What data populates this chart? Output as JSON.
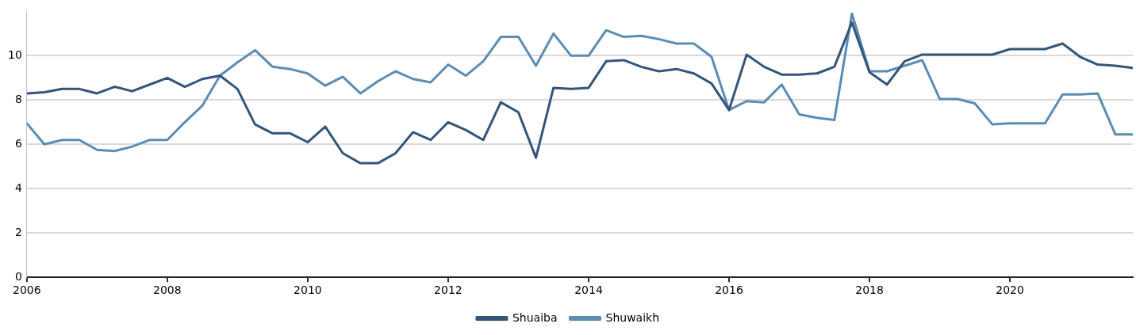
{
  "chart_data": {
    "type": "line",
    "x": [
      2006,
      2006.25,
      2006.5,
      2006.75,
      2007,
      2007.25,
      2007.5,
      2007.75,
      2008,
      2008.25,
      2008.5,
      2008.75,
      2009,
      2009.25,
      2009.5,
      2009.75,
      2010,
      2010.25,
      2010.5,
      2010.75,
      2011,
      2011.25,
      2011.5,
      2011.75,
      2012,
      2012.25,
      2012.5,
      2012.75,
      2013,
      2013.25,
      2013.5,
      2013.75,
      2014,
      2014.25,
      2014.5,
      2014.75,
      2015,
      2015.25,
      2015.5,
      2015.75,
      2016,
      2016.25,
      2016.5,
      2016.75,
      2017,
      2017.25,
      2017.5,
      2017.75,
      2018,
      2018.25,
      2018.5,
      2018.75,
      2019,
      2019.25,
      2019.5,
      2019.75,
      2020,
      2020.25,
      2020.5,
      2020.75,
      2021,
      2021.25,
      2021.5,
      2021.75
    ],
    "series": [
      {
        "name": "Shuaiba",
        "color": "#34557a",
        "values": [
          8.3,
          8.35,
          8.5,
          8.5,
          8.3,
          8.6,
          8.4,
          8.7,
          9.0,
          8.6,
          8.95,
          9.1,
          8.5,
          6.9,
          6.5,
          6.5,
          6.1,
          6.8,
          5.6,
          5.15,
          5.15,
          5.6,
          6.55,
          6.2,
          7.0,
          6.65,
          6.2,
          7.9,
          7.45,
          5.4,
          8.55,
          8.5,
          8.55,
          9.75,
          9.8,
          9.5,
          9.3,
          9.4,
          9.2,
          8.75,
          7.55,
          10.05,
          9.5,
          9.15,
          9.15,
          9.2,
          9.5,
          11.5,
          9.25,
          8.7,
          9.75,
          10.05,
          10.05,
          10.05,
          10.05,
          10.05,
          10.3,
          10.3,
          10.3,
          10.55,
          9.95,
          9.6,
          9.55,
          9.45
        ]
      },
      {
        "name": "Shuwaikh",
        "color": "#5b8db4",
        "values": [
          6.95,
          6.0,
          6.2,
          6.2,
          5.75,
          5.7,
          5.9,
          6.2,
          6.2,
          7.0,
          7.75,
          9.1,
          9.7,
          10.25,
          9.5,
          9.4,
          9.2,
          8.65,
          9.05,
          8.3,
          8.85,
          9.3,
          8.95,
          8.8,
          9.6,
          9.1,
          9.75,
          10.85,
          10.85,
          9.55,
          11.0,
          10.0,
          10.0,
          11.15,
          10.85,
          10.9,
          10.75,
          10.55,
          10.55,
          9.95,
          7.55,
          7.95,
          7.9,
          8.7,
          7.35,
          7.2,
          7.1,
          11.9,
          9.3,
          9.3,
          9.55,
          9.8,
          8.05,
          8.05,
          7.85,
          6.9,
          6.95,
          6.95,
          6.95,
          8.25,
          8.25,
          8.3,
          6.45,
          6.45
        ]
      }
    ],
    "xlim": [
      2006,
      2021.75
    ],
    "xticks": [
      2006,
      2008,
      2010,
      2012,
      2014,
      2016,
      2018,
      2020
    ],
    "ylim": [
      0,
      12
    ],
    "yticks": [
      0,
      2,
      4,
      6,
      8,
      10
    ],
    "grid": "y",
    "legend": "bottom",
    "line_style": "solid"
  }
}
